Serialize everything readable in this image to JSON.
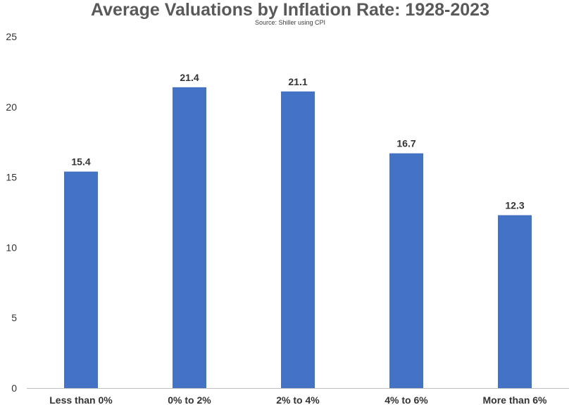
{
  "chart_data": {
    "type": "bar",
    "title": "Average Valuations by Inflation Rate: 1928-2023",
    "subtitle": "Source: Shiller using CPI",
    "xlabel": "",
    "ylabel": "",
    "categories": [
      "Less than 0%",
      "0% to 2%",
      "2% to 4%",
      "4% to 6%",
      "More than 6%"
    ],
    "values": [
      15.4,
      21.4,
      21.1,
      16.7,
      12.3
    ],
    "data_labels": [
      "15.4",
      "21.4",
      "21.1",
      "16.7",
      "12.3"
    ],
    "ylim": [
      0,
      25
    ],
    "yticks": [
      0,
      5,
      10,
      15,
      20,
      25
    ],
    "grid": false,
    "legend": "none",
    "bar_color": "#4472C4"
  }
}
